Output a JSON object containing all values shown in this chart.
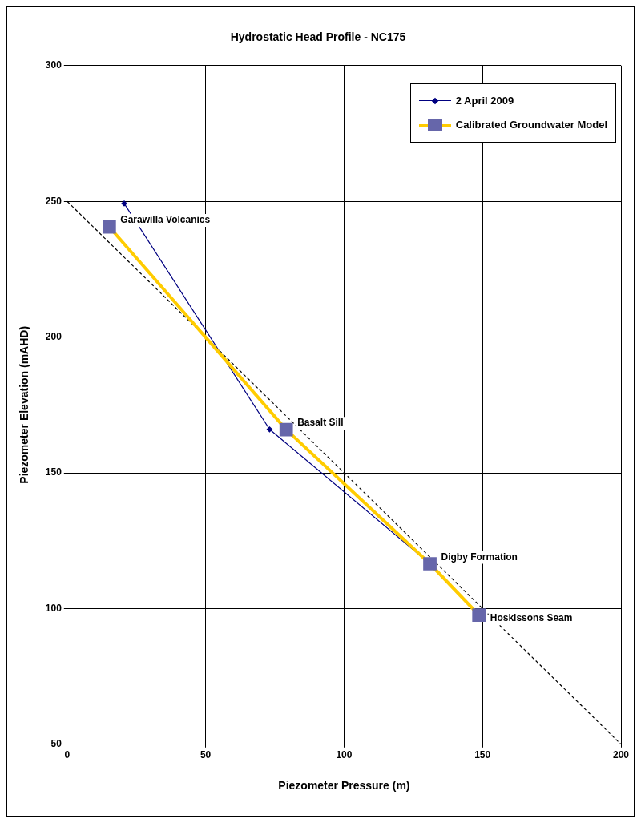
{
  "chart_data": {
    "type": "scatter",
    "title": "Hydrostatic Head Profile - NC175",
    "xlabel": "Piezometer Pressure (m)",
    "ylabel": "Piezometer Elevation (mAHD)",
    "xlim": [
      0,
      200
    ],
    "xticks": [
      0,
      50,
      100,
      150,
      200
    ],
    "ylim": [
      50,
      300
    ],
    "yticks": [
      50,
      100,
      150,
      200,
      250,
      300
    ],
    "grid": true,
    "legend": "top right",
    "series": [
      {
        "type": "line",
        "color": "#000000",
        "line_style": "dashed",
        "marker": "none",
        "x": [
          0,
          200
        ],
        "values": [
          250,
          50
        ]
      },
      {
        "type": "line",
        "name": "2 April 2009",
        "color": "#000080",
        "marker": "diamond",
        "x": [
          20.6,
          73.1,
          131,
          148.7
        ],
        "values": [
          249.2,
          166,
          116.5,
          97.5
        ]
      },
      {
        "type": "line",
        "name": "Calibrated Groundwater Model",
        "color": "#ffcc00",
        "marker": "square",
        "x": [
          15.2,
          79.1,
          131,
          148.7
        ],
        "values": [
          240.6,
          165.9,
          116.5,
          97.6
        ]
      }
    ],
    "annotations": [
      {
        "text": "Garawilla Volcanics",
        "x": 15.2,
        "y": 240.6
      },
      {
        "text": "Basalt Sill",
        "x": 79.1,
        "y": 165.9
      },
      {
        "text": "Digby Formation",
        "x": 131,
        "y": 116.5
      },
      {
        "text": "Hoskissons Seam",
        "x": 148.7,
        "y": 97.6
      }
    ]
  }
}
